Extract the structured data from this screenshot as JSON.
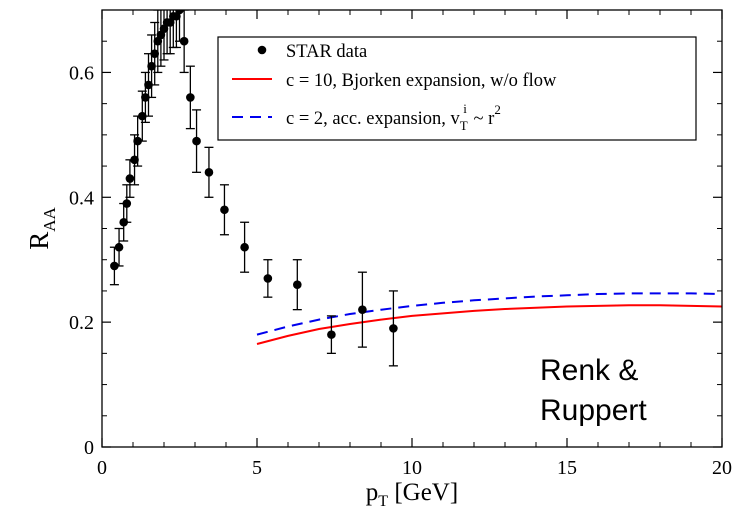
{
  "chart_data": {
    "type": "scatter",
    "xlabel": "p",
    "xlabel_sub": "T",
    "xlabel_unit": "[GeV]",
    "ylabel": "R",
    "ylabel_sub": "AA",
    "xlim": [
      0,
      20
    ],
    "ylim": [
      0,
      0.7
    ],
    "xticks": [
      0,
      5,
      10,
      15,
      20
    ],
    "yticks": [
      0,
      0.2,
      0.4,
      0.6
    ],
    "xtick_labels": [
      "0",
      "5",
      "10",
      "15",
      "20"
    ],
    "ytick_labels": [
      "0",
      "0.2",
      "0.4",
      "0.6"
    ],
    "grid": false,
    "legend_position": "top-right",
    "annotation": [
      "Renk &",
      "Ruppert"
    ],
    "series": [
      {
        "name": "STAR data",
        "kind": "points",
        "color": "#000000",
        "x": [
          0.4,
          0.55,
          0.7,
          0.8,
          0.9,
          1.05,
          1.15,
          1.3,
          1.4,
          1.5,
          1.6,
          1.7,
          1.8,
          1.9,
          2.0,
          2.1,
          2.2,
          2.3,
          2.4,
          2.5,
          2.65,
          2.85,
          3.05,
          3.45,
          3.95,
          4.6,
          5.35,
          6.3,
          7.4,
          8.4,
          9.4
        ],
        "y": [
          0.29,
          0.32,
          0.36,
          0.39,
          0.43,
          0.46,
          0.49,
          0.53,
          0.56,
          0.58,
          0.61,
          0.63,
          0.65,
          0.66,
          0.67,
          0.68,
          0.68,
          0.69,
          0.69,
          0.7,
          0.65,
          0.56,
          0.49,
          0.44,
          0.38,
          0.32,
          0.27,
          0.26,
          0.18,
          0.22,
          0.19
        ],
        "err": [
          0.03,
          0.03,
          0.03,
          0.03,
          0.03,
          0.04,
          0.04,
          0.04,
          0.04,
          0.05,
          0.05,
          0.05,
          0.05,
          0.05,
          0.05,
          0.05,
          0.05,
          0.05,
          0.05,
          0.05,
          0.05,
          0.05,
          0.05,
          0.04,
          0.04,
          0.04,
          0.03,
          0.04,
          0.03,
          0.06,
          0.06
        ]
      },
      {
        "name": "c = 10, Bjorken expansion, w/o flow",
        "kind": "line",
        "color": "#ff0000",
        "dash": "solid",
        "x": [
          5,
          6,
          7,
          8,
          9,
          10,
          11,
          12,
          13,
          14,
          15,
          16,
          17,
          18,
          19,
          20
        ],
        "y": [
          0.165,
          0.178,
          0.189,
          0.197,
          0.204,
          0.21,
          0.214,
          0.218,
          0.221,
          0.223,
          0.225,
          0.226,
          0.227,
          0.227,
          0.226,
          0.225
        ]
      },
      {
        "name": "c = 2, acc. expansion, v",
        "name_sub": "T",
        "name_sup": "i",
        "name_tail": " ~ r",
        "name_tail_sup": "2",
        "kind": "line",
        "color": "#0000ee",
        "dash": "dashed",
        "x": [
          5,
          6,
          7,
          8,
          9,
          10,
          11,
          12,
          13,
          14,
          15,
          16,
          17,
          18,
          19,
          20
        ],
        "y": [
          0.18,
          0.193,
          0.204,
          0.213,
          0.22,
          0.226,
          0.231,
          0.235,
          0.238,
          0.241,
          0.243,
          0.245,
          0.246,
          0.246,
          0.246,
          0.245
        ]
      }
    ]
  }
}
